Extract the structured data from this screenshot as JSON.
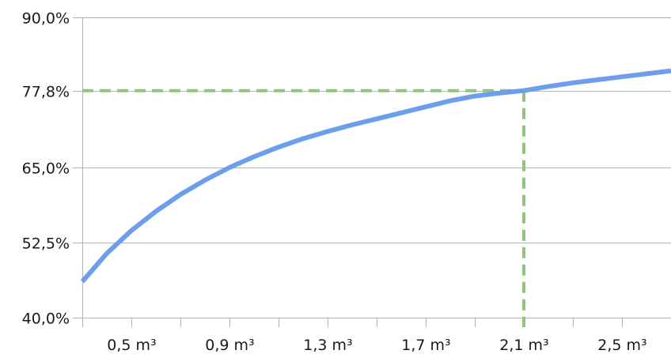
{
  "chart_data": {
    "type": "line",
    "title": "",
    "xlabel": "",
    "ylabel": "",
    "xlim": [
      0.3,
      2.7
    ],
    "ylim": [
      40.0,
      90.0
    ],
    "grid": "horizontal",
    "y_ticks": [
      {
        "value": 40.0,
        "label": "40,0%"
      },
      {
        "value": 52.5,
        "label": "52,5%"
      },
      {
        "value": 65.0,
        "label": "65,0%"
      },
      {
        "value": 77.8,
        "label": "77,8%"
      },
      {
        "value": 90.0,
        "label": "90,0%"
      }
    ],
    "x_ticks": [
      {
        "value": 0.5,
        "label": "0,5 m³"
      },
      {
        "value": 0.9,
        "label": "0,9 m³"
      },
      {
        "value": 1.3,
        "label": "1,3 m³"
      },
      {
        "value": 1.7,
        "label": "1,7 m³"
      },
      {
        "value": 2.1,
        "label": "2,1 m³"
      },
      {
        "value": 2.5,
        "label": "2,5 m³"
      }
    ],
    "x_minor_ticks": [
      0.3,
      0.7,
      1.1,
      1.5,
      1.9,
      2.3
    ],
    "series": [
      {
        "color": "#6d9eeb",
        "x": [
          0.3,
          0.4,
          0.5,
          0.6,
          0.7,
          0.8,
          0.9,
          1.0,
          1.1,
          1.2,
          1.3,
          1.4,
          1.5,
          1.6,
          1.7,
          1.8,
          1.9,
          2.0,
          2.1,
          2.2,
          2.3,
          2.4,
          2.5,
          2.6,
          2.7
        ],
        "y": [
          46.0,
          50.7,
          54.5,
          57.7,
          60.5,
          62.9,
          65.0,
          66.8,
          68.4,
          69.8,
          71.0,
          72.1,
          73.1,
          74.1,
          75.1,
          76.1,
          76.9,
          77.4,
          77.8,
          78.5,
          79.1,
          79.6,
          80.1,
          80.6,
          81.1
        ]
      }
    ],
    "reference": {
      "x": 2.1,
      "y": 77.8,
      "color": "#93c47d"
    }
  }
}
